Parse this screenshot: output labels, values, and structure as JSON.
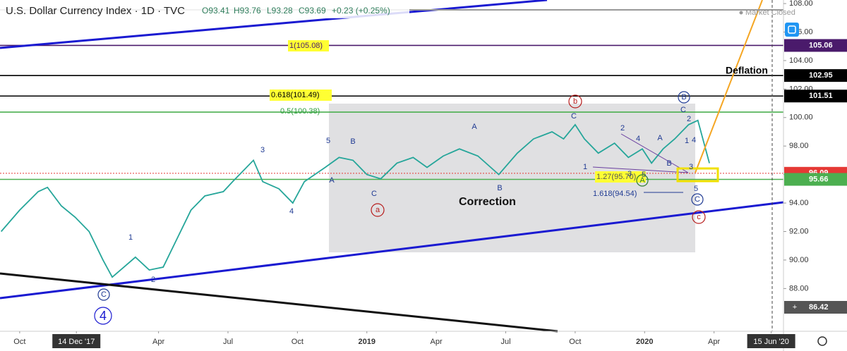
{
  "title": "U.S. Dollar Currency Index · 1D · TVC",
  "ohlc": [
    "O93.41",
    "H93.76",
    "L93.28",
    "C93.69",
    "+0.23 (+0.25%)"
  ],
  "status": "Market Closed",
  "chart_data": {
    "type": "line",
    "color": "#26a69a",
    "xlim": [
      -0.85,
      33
    ],
    "xticks": [
      {
        "value": 0,
        "label": "Oct"
      },
      {
        "value": 2.45,
        "label": "14 Dec '17"
      },
      {
        "value": 6,
        "label": "Apr"
      },
      {
        "value": 9,
        "label": "Jul"
      },
      {
        "value": 12,
        "label": "Oct"
      },
      {
        "value": 15,
        "label": "2019"
      },
      {
        "value": 18,
        "label": "Apr"
      },
      {
        "value": 21,
        "label": "Jul"
      },
      {
        "value": 24,
        "label": "Oct"
      },
      {
        "value": 27,
        "label": "2020"
      },
      {
        "value": 30,
        "label": "Apr"
      },
      {
        "value": 32.47,
        "label": "15 Jun '20"
      }
    ],
    "ylim": [
      85,
      108.25
    ],
    "yticks": [
      {
        "value": 88,
        "label": "88.00"
      },
      {
        "value": 90,
        "label": "90.00"
      },
      {
        "value": 92,
        "label": "92.00"
      },
      {
        "value": 94,
        "label": "94.00"
      },
      {
        "value": 96,
        "label": "96.00"
      },
      {
        "value": 98,
        "label": "98.00"
      },
      {
        "value": 100,
        "label": "100.00"
      },
      {
        "value": 102,
        "label": "102.00"
      },
      {
        "value": 104,
        "label": "104.00"
      },
      {
        "value": 106,
        "label": "106.00"
      },
      {
        "value": 108,
        "label": "108.00"
      }
    ],
    "x": [
      -0.8,
      0,
      0.8,
      1.2,
      1.8,
      2.4,
      3,
      3.6,
      4.0,
      4.5,
      5.0,
      5.6,
      6.2,
      6.8,
      7.4,
      8.0,
      8.8,
      9.2,
      10.1,
      10.5,
      11.2,
      11.8,
      12.3,
      13.2,
      13.8,
      14.4,
      15.0,
      15.6,
      16.3,
      17.0,
      17.6,
      18.3,
      19.0,
      19.8,
      20.7,
      21.5,
      22.2,
      23.0,
      23.5,
      24.0,
      24.4,
      25.0,
      25.7,
      26.3,
      26.9,
      27.3,
      27.8,
      28.3,
      28.9,
      29.3,
      29.6,
      29.8
    ],
    "values": [
      92.0,
      93.5,
      94.8,
      95.1,
      93.8,
      93.0,
      92.0,
      90.0,
      88.8,
      89.5,
      90.2,
      89.3,
      89.5,
      91.5,
      93.5,
      94.5,
      94.8,
      95.5,
      97.0,
      95.5,
      95.0,
      94.0,
      95.5,
      96.5,
      97.2,
      97.0,
      96.0,
      95.7,
      96.8,
      97.2,
      96.5,
      97.3,
      97.8,
      97.3,
      96.0,
      97.5,
      98.5,
      99.0,
      98.5,
      99.5,
      98.5,
      97.5,
      98.2,
      97.2,
      97.8,
      96.8,
      97.8,
      98.5,
      99.5,
      99.8,
      98.0,
      96.8
    ],
    "levels": [
      {
        "value": 105.06,
        "label": "105.06",
        "color": "#4a1a6b"
      },
      {
        "value": 102.95,
        "label": "102.95",
        "color": "#000000"
      },
      {
        "value": 101.51,
        "label": "101.51",
        "color": "#000000"
      },
      {
        "value": 100.38,
        "label": null,
        "color": "#4caf50"
      },
      {
        "value": 96.09,
        "label": "96.09",
        "color": "#e53935"
      },
      {
        "value": 95.66,
        "label": "95.66",
        "color": "#4caf50"
      }
    ],
    "last_label": "86.42",
    "annotations": [
      "1(105.08)",
      "0.618(101.49)",
      "0.5(100.38)",
      "1.27(95.70)",
      "1.618(94.54)",
      "Deflation",
      "Correction"
    ],
    "wave_labels": [
      "5",
      "B",
      "A",
      "C",
      "3",
      "4",
      "1",
      "2",
      "A",
      "B",
      "C",
      "2",
      "4",
      "1",
      "3",
      "5",
      "A",
      "B",
      "C",
      "2",
      "1",
      "4",
      "3",
      "5"
    ],
    "circled_labels": [
      "b",
      "a",
      "c",
      "B",
      "C",
      "A",
      "C",
      "4"
    ]
  }
}
